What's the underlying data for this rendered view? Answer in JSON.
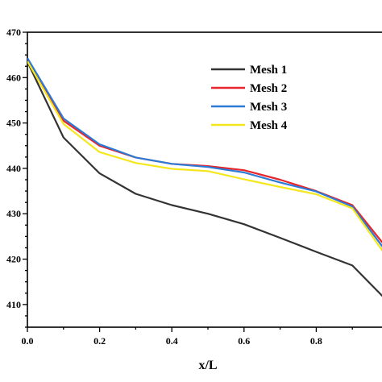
{
  "chart_data": {
    "type": "line",
    "xlabel": "x/L",
    "ylabel": "",
    "xlim": [
      0.0,
      1.0
    ],
    "ylim": [
      405,
      470
    ],
    "x_ticks": [
      0.0,
      0.2,
      0.4,
      0.6,
      0.8
    ],
    "x_tick_labels": [
      "0.0",
      "0.2",
      "0.4",
      "0.6",
      "0.8"
    ],
    "y_ticks": [
      410,
      420,
      430,
      440,
      450,
      460,
      470
    ],
    "y_tick_labels": [
      "410",
      "420",
      "430",
      "440",
      "450",
      "460",
      "470"
    ],
    "grid": false,
    "legend_position": "top-right",
    "x": [
      0.0,
      0.1,
      0.2,
      0.3,
      0.4,
      0.5,
      0.6,
      0.7,
      0.8,
      0.9,
      1.0
    ],
    "series": [
      {
        "name": "Mesh 1",
        "color": "#333333",
        "values": [
          463.5,
          446.8,
          438.9,
          434.4,
          431.9,
          430.0,
          427.7,
          424.7,
          421.6,
          418.6,
          410.5
        ]
      },
      {
        "name": "Mesh 2",
        "color": "#e8232a",
        "values": [
          464.2,
          450.5,
          445.0,
          442.4,
          441.0,
          440.5,
          439.6,
          437.5,
          435.0,
          431.9,
          422.0
        ]
      },
      {
        "name": "Mesh 3",
        "color": "#2b7bd6",
        "values": [
          464.3,
          451.0,
          445.3,
          442.4,
          441.0,
          440.3,
          439.1,
          436.9,
          434.9,
          431.6,
          421.0
        ]
      },
      {
        "name": "Mesh 4",
        "color": "#f5e71e",
        "values": [
          463.6,
          449.8,
          443.6,
          441.2,
          439.9,
          439.4,
          437.6,
          435.9,
          434.3,
          431.2,
          420.0
        ]
      }
    ]
  }
}
